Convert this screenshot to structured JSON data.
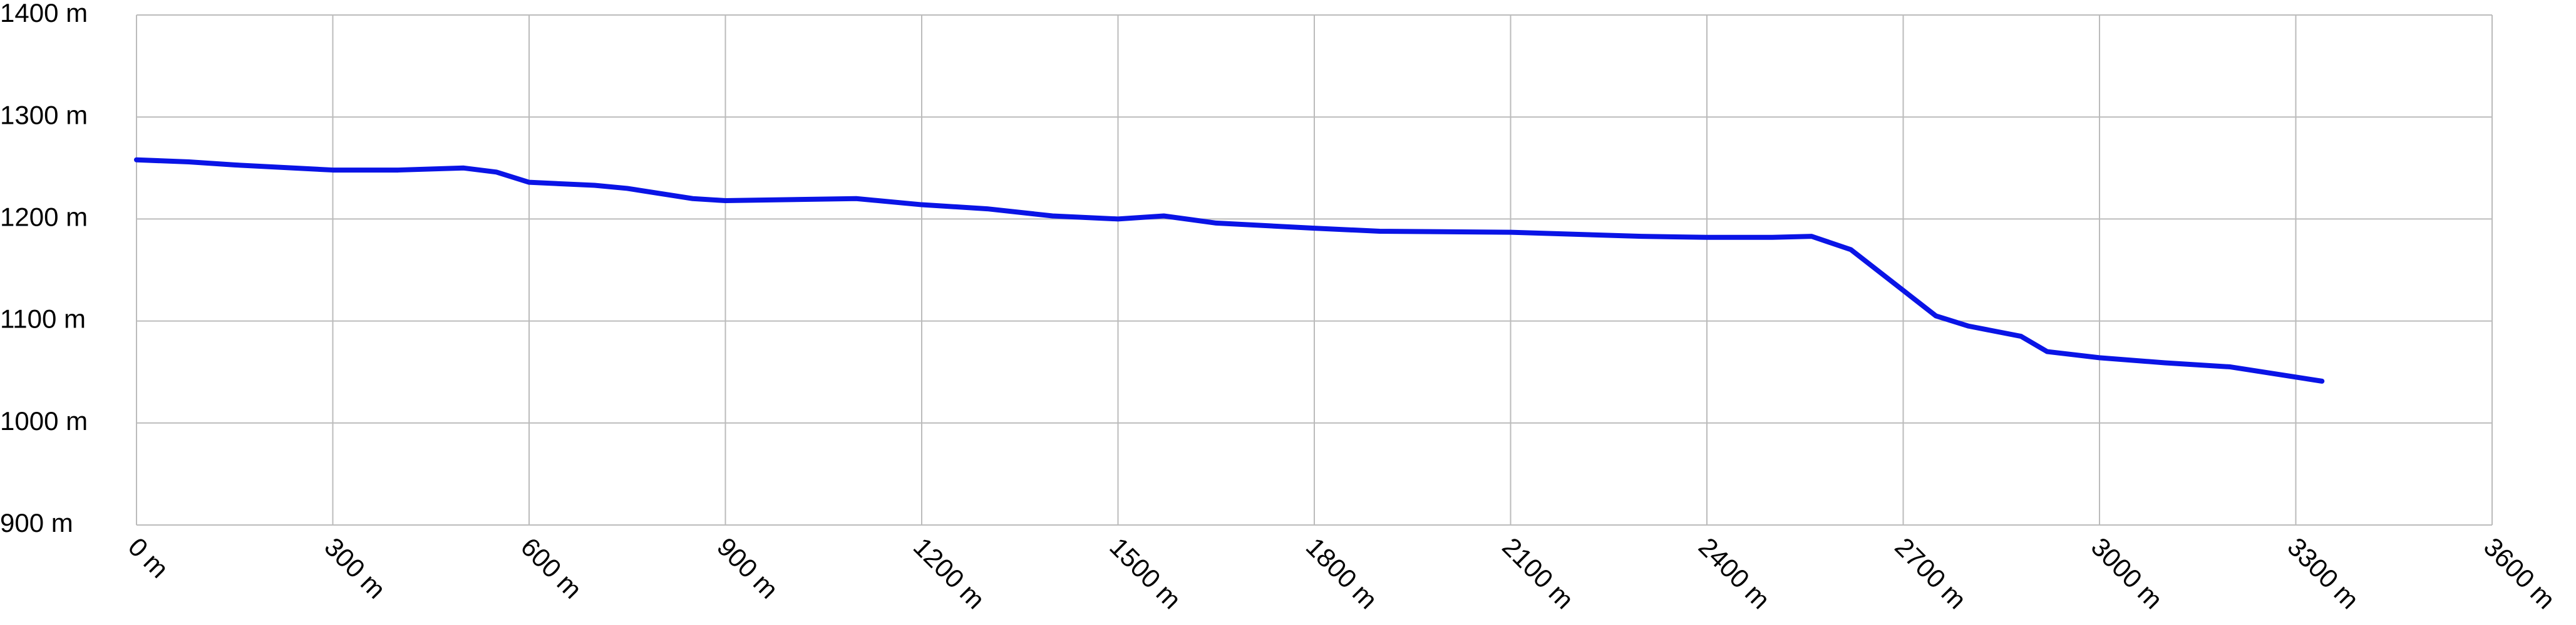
{
  "chart_data": {
    "type": "line",
    "x": [
      0,
      80,
      150,
      300,
      400,
      500,
      550,
      600,
      700,
      750,
      850,
      900,
      1000,
      1100,
      1200,
      1300,
      1400,
      1500,
      1570,
      1650,
      1800,
      1900,
      2100,
      2300,
      2400,
      2500,
      2560,
      2620,
      2700,
      2750,
      2800,
      2880,
      2920,
      3000,
      3100,
      3200,
      3340
    ],
    "series": [
      {
        "color": "#0a14e6",
        "values": [
          1258,
          1256,
          1253,
          1248,
          1248,
          1250,
          1246,
          1236,
          1233,
          1230,
          1220,
          1218,
          1219,
          1220,
          1214,
          1210,
          1203,
          1200,
          1203,
          1196,
          1191,
          1188,
          1187,
          1183,
          1182,
          1182,
          1183,
          1170,
          1130,
          1105,
          1095,
          1085,
          1070,
          1064,
          1059,
          1055,
          1041
        ]
      }
    ],
    "xlim": [
      0,
      3600
    ],
    "xticks": [
      {
        "value": 0,
        "label": "0 m"
      },
      {
        "value": 300,
        "label": "300 m"
      },
      {
        "value": 600,
        "label": "600 m"
      },
      {
        "value": 900,
        "label": "900 m"
      },
      {
        "value": 1200,
        "label": "1200 m"
      },
      {
        "value": 1500,
        "label": "1500 m"
      },
      {
        "value": 1800,
        "label": "1800 m"
      },
      {
        "value": 2100,
        "label": "2100 m"
      },
      {
        "value": 2400,
        "label": "2400 m"
      },
      {
        "value": 2700,
        "label": "2700 m"
      },
      {
        "value": 3000,
        "label": "3000 m"
      },
      {
        "value": 3300,
        "label": "3300 m"
      },
      {
        "value": 3600,
        "label": "3600 m"
      }
    ],
    "ylim": [
      900,
      1400
    ],
    "yticks": [
      {
        "value": 900,
        "label": "900 m"
      },
      {
        "value": 1000,
        "label": "1000 m"
      },
      {
        "value": 1100,
        "label": "1100 m"
      },
      {
        "value": 1200,
        "label": "1200 m"
      },
      {
        "value": 1300,
        "label": "1300 m"
      },
      {
        "value": 1400,
        "label": "1400 m"
      }
    ],
    "grid": true
  }
}
